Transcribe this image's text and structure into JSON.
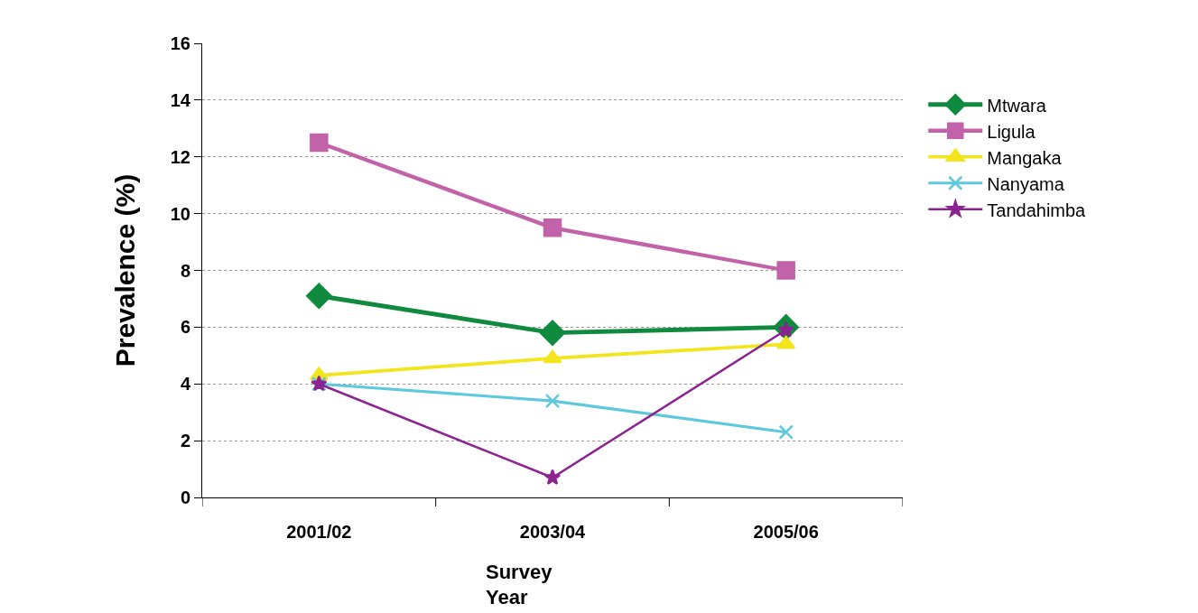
{
  "chart_data": {
    "type": "line",
    "xlabel": "Survey Year",
    "ylabel": "Prevalence (%)",
    "categories": [
      "2001/02",
      "2003/04",
      "2005/06"
    ],
    "series": [
      {
        "name": "Mtwara",
        "color": "#0f8a3e",
        "marker": "diamond",
        "values": [
          7.1,
          5.8,
          6.0
        ]
      },
      {
        "name": "Ligula",
        "color": "#c262a8",
        "marker": "square",
        "values": [
          12.5,
          9.5,
          8.0
        ]
      },
      {
        "name": "Mangaka",
        "color": "#f2e51b",
        "marker": "triangle",
        "values": [
          4.3,
          4.9,
          5.4
        ]
      },
      {
        "name": "Nanyama",
        "color": "#5ec8dc",
        "marker": "cross",
        "values": [
          4.0,
          3.4,
          2.3
        ]
      },
      {
        "name": "Tandahimba",
        "color": "#8b2490",
        "marker": "star",
        "values": [
          4.0,
          0.7,
          5.9
        ]
      }
    ],
    "ylim": [
      0,
      16
    ],
    "yticks": [
      0,
      2,
      4,
      6,
      8,
      10,
      12,
      14,
      16
    ],
    "grid": "y",
    "legend": "right",
    "line_style": "solid"
  }
}
